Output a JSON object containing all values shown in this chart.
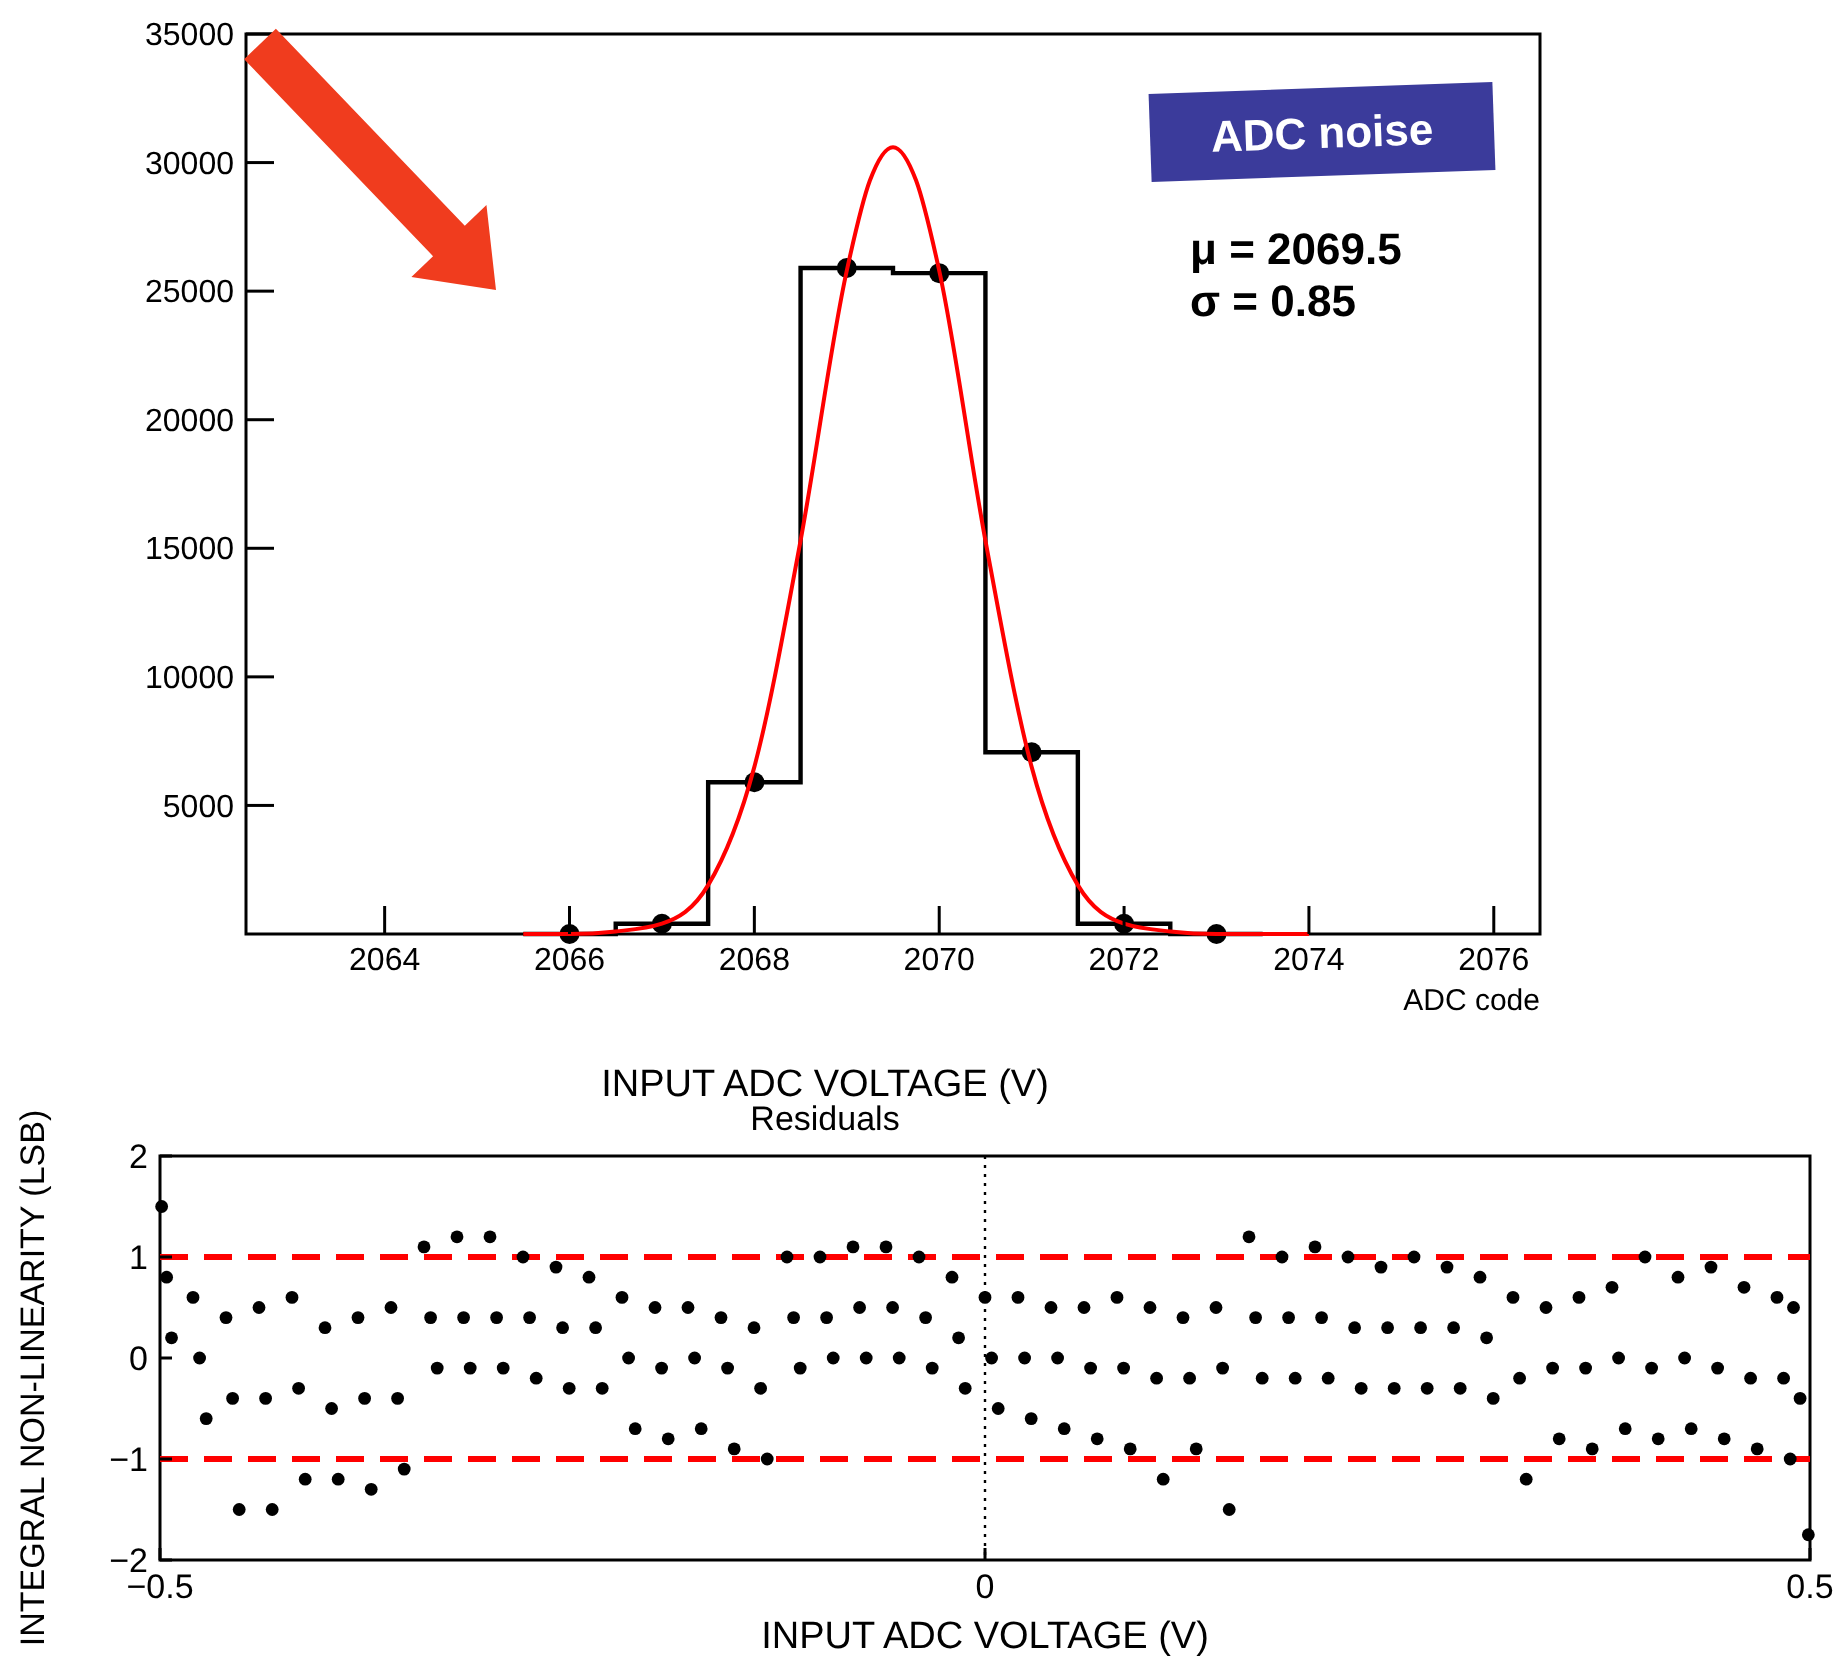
{
  "chart_data": [
    {
      "type": "histogram",
      "xlabel": "ADC code",
      "annotations": [
        "ADC noise",
        "μ = 2069.5",
        "σ = 0.85"
      ],
      "bins": [
        2065.5,
        2066.5,
        2067.5,
        2068.5,
        2069.5,
        2070.5,
        2071.5,
        2072.5,
        2073.5
      ],
      "series": [
        {
          "color": "#000000",
          "values": [
            0,
            400,
            5900,
            25900,
            25700,
            7070,
            400,
            0
          ]
        },
        {
          "type": "scatter",
          "color": "#000000",
          "marker": "circle",
          "x": [
            2066,
            2067,
            2068,
            2069,
            2070,
            2071,
            2072,
            2073
          ],
          "values": [
            0,
            400,
            5900,
            25900,
            25700,
            7070,
            400,
            0
          ]
        },
        {
          "type": "line",
          "color": "#ff0000",
          "marker": "none",
          "x": [
            2065.5,
            2066,
            2066.5,
            2067,
            2067.5,
            2068,
            2068.5,
            2069,
            2069.25,
            2069.5,
            2069.75,
            2070,
            2070.5,
            2071,
            2071.5,
            2072,
            2072.5,
            2073,
            2073.5,
            2074
          ],
          "values": [
            0,
            0,
            100,
            400,
            1900,
            6500,
            15300,
            25800,
            29300,
            30600,
            29300,
            25800,
            15300,
            6500,
            1900,
            400,
            100,
            0,
            0,
            0
          ]
        }
      ],
      "xlim": [
        2062.5,
        2076.5
      ],
      "xticks": [
        2064,
        2066,
        2068,
        2070,
        2072,
        2074,
        2076
      ],
      "ylim": [
        0,
        35000
      ],
      "yticks": [
        5000,
        10000,
        15000,
        20000,
        25000,
        30000,
        35000
      ]
    },
    {
      "type": "scatter",
      "title": "INPUT ADC VOLTAGE (V)",
      "subtitle": "Residuals",
      "xlabel": "INPUT ADC VOLTAGE (V)",
      "ylabel": "INTEGRAL NON-LINEARITY (LSB)",
      "marker": "circle",
      "xlim": [
        -0.5,
        0.5
      ],
      "xticks": [
        {
          "value": -0.5,
          "label": "−0.5"
        },
        0,
        0.5
      ],
      "ylim": [
        -2,
        2
      ],
      "yticks": [
        {
          "value": -2,
          "label": "−2"
        },
        {
          "value": -1,
          "label": "−1"
        },
        0,
        1,
        2
      ],
      "ref_lines": [
        {
          "axis": "y",
          "value": 1,
          "color": "#ff0000",
          "line_style": "dashed"
        },
        {
          "axis": "y",
          "value": -1,
          "color": "#ff0000",
          "line_style": "dashed"
        },
        {
          "axis": "x",
          "value": 0,
          "color": "#000000",
          "line_style": "dotted"
        }
      ],
      "series": [
        {
          "color": "#000000",
          "x": [
            -0.499,
            -0.48,
            -0.46,
            -0.44,
            -0.42,
            -0.4,
            -0.38,
            -0.36,
            -0.34,
            -0.32,
            -0.3,
            -0.28,
            -0.26,
            -0.24,
            -0.22,
            -0.2,
            -0.18,
            -0.16,
            -0.14,
            -0.12,
            -0.1,
            -0.08,
            -0.06,
            -0.04,
            -0.02,
            0,
            0.02,
            0.04,
            0.06,
            0.08,
            0.1,
            0.12,
            0.14,
            0.16,
            0.18,
            0.2,
            0.22,
            0.24,
            0.26,
            0.28,
            0.3,
            0.32,
            0.34,
            0.36,
            0.38,
            0.4,
            0.42,
            0.44,
            0.46,
            0.48,
            0.49
          ],
          "values": [
            1.5,
            0.6,
            0.4,
            0.5,
            0.6,
            0.3,
            0.4,
            0.5,
            1.1,
            1.2,
            1.2,
            1.0,
            0.9,
            0.8,
            0.6,
            0.5,
            0.5,
            0.4,
            0.3,
            1.0,
            1.0,
            1.1,
            1.1,
            1.0,
            0.8,
            0.6,
            0.6,
            0.5,
            0.5,
            0.6,
            0.5,
            0.4,
            0.5,
            1.2,
            1.0,
            1.1,
            1.0,
            0.9,
            1.0,
            0.9,
            0.8,
            0.6,
            0.5,
            0.6,
            0.7,
            1.0,
            0.8,
            0.9,
            0.7,
            0.6,
            0.5
          ]
        },
        {
          "color": "#000000",
          "x": [
            -0.496,
            -0.476,
            -0.456,
            -0.436,
            -0.416,
            -0.396,
            -0.376,
            -0.356,
            -0.336,
            -0.316,
            -0.296,
            -0.276,
            -0.256,
            -0.236,
            -0.216,
            -0.196,
            -0.176,
            -0.156,
            -0.136,
            -0.116,
            -0.096,
            -0.076,
            -0.056,
            -0.036,
            -0.016,
            0.004,
            0.024,
            0.044,
            0.064,
            0.084,
            0.104,
            0.124,
            0.144,
            0.164,
            0.184,
            0.204,
            0.224,
            0.244,
            0.264,
            0.284,
            0.304,
            0.324,
            0.344,
            0.364,
            0.384,
            0.404,
            0.424,
            0.444,
            0.464,
            0.484,
            0.494
          ],
          "values": [
            0.8,
            0.0,
            -0.4,
            -0.4,
            -0.3,
            -0.5,
            -0.4,
            -0.4,
            0.4,
            0.4,
            0.4,
            0.4,
            0.3,
            0.3,
            0.0,
            -0.1,
            0.0,
            -0.1,
            -0.3,
            0.4,
            0.4,
            0.5,
            0.5,
            0.4,
            0.2,
            0.0,
            0.0,
            0.0,
            -0.1,
            -0.1,
            -0.2,
            -0.2,
            -0.1,
            0.4,
            0.4,
            0.4,
            0.3,
            0.3,
            0.3,
            0.3,
            0.2,
            -0.2,
            -0.1,
            -0.1,
            0.0,
            -0.1,
            0.0,
            -0.1,
            -0.2,
            -0.2,
            -0.4
          ]
        },
        {
          "color": "#000000",
          "x": [
            -0.493,
            -0.472,
            -0.452,
            -0.432,
            -0.412,
            -0.392,
            -0.372,
            -0.352,
            -0.332,
            -0.312,
            -0.292,
            -0.272,
            -0.252,
            -0.232,
            -0.212,
            -0.192,
            -0.172,
            -0.152,
            -0.132,
            -0.112,
            -0.092,
            -0.072,
            -0.052,
            -0.032,
            -0.012,
            0.008,
            0.028,
            0.048,
            0.068,
            0.088,
            0.108,
            0.128,
            0.148,
            0.168,
            0.188,
            0.208,
            0.228,
            0.248,
            0.268,
            0.288,
            0.308,
            0.328,
            0.348,
            0.368,
            0.388,
            0.408,
            0.428,
            0.448,
            0.468,
            0.488,
            0.499
          ],
          "values": [
            0.2,
            -0.6,
            -1.5,
            -1.5,
            -1.2,
            -1.2,
            -1.3,
            -1.1,
            -0.1,
            -0.1,
            -0.1,
            -0.2,
            -0.3,
            -0.3,
            -0.7,
            -0.8,
            -0.7,
            -0.9,
            -1.0,
            -0.1,
            0.0,
            0.0,
            0.0,
            -0.1,
            -0.3,
            -0.5,
            -0.6,
            -0.7,
            -0.8,
            -0.9,
            -1.2,
            -0.9,
            -1.5,
            -0.2,
            -0.2,
            -0.2,
            -0.3,
            -0.3,
            -0.3,
            -0.3,
            -0.4,
            -1.2,
            -0.8,
            -0.9,
            -0.7,
            -0.8,
            -0.7,
            -0.8,
            -0.9,
            -1.0,
            -1.75
          ]
        }
      ]
    }
  ]
}
